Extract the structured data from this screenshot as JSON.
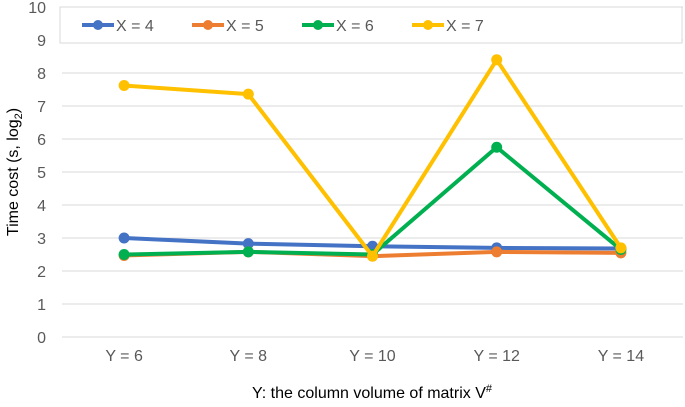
{
  "chart_data": {
    "type": "line",
    "title": "",
    "xlabel": "Y: the column volume of matrix V",
    "xlabel_sup": "#",
    "ylabel": "Time cost (s, log",
    "ylabel_sub": "2",
    "ylabel_end": ")",
    "categories": [
      "Y = 6",
      "Y = 8",
      "Y = 10",
      "Y = 12",
      "Y = 14"
    ],
    "ylim": [
      0,
      10
    ],
    "yticks": [
      0,
      1,
      2,
      3,
      4,
      5,
      6,
      7,
      8,
      9,
      10
    ],
    "grid": true,
    "legend_position": "top",
    "series": [
      {
        "name": "X = 4",
        "color": "#4472C4",
        "values": [
          3.0,
          2.83,
          2.75,
          2.7,
          2.68
        ]
      },
      {
        "name": "X = 5",
        "color": "#ED7D31",
        "values": [
          2.47,
          2.58,
          2.45,
          2.58,
          2.55
        ]
      },
      {
        "name": "X = 6",
        "color": "#00B050",
        "values": [
          2.5,
          2.58,
          2.5,
          5.75,
          2.65
        ]
      },
      {
        "name": "X = 7",
        "color": "#FFC000",
        "values": [
          7.62,
          7.36,
          2.45,
          8.4,
          2.7
        ]
      }
    ]
  }
}
